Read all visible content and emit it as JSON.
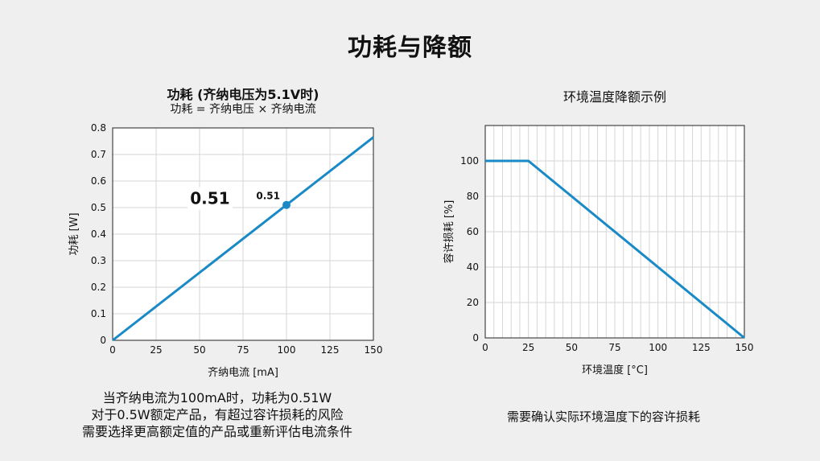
{
  "page": {
    "title": "功耗与降额"
  },
  "left_panel": {
    "caption_lines": [
      "当齐纳电流为100mA时，功耗为0.51W",
      "对于0.5W额定产品，有超过容许损耗的风险",
      "需要选择更高额定值的产品或重新评估电流条件"
    ]
  },
  "right_panel": {
    "caption": "需要确认实际环境温度下的容许损耗"
  },
  "chart_data": [
    {
      "type": "line",
      "title": "功耗 (齐纳电压为5.1V时)",
      "subtitle": "功耗 = 齐纳电压 × 齐纳电流",
      "xlabel": "齐纳电流 [mA]",
      "ylabel": "功耗 [W]",
      "xlim": [
        0,
        150
      ],
      "ylim": [
        0,
        0.8
      ],
      "xticks": [
        "0",
        "25",
        "50",
        "75",
        "100",
        "125",
        "150"
      ],
      "yticks": [
        "0",
        "0.1",
        "0.2",
        "0.3",
        "0.4",
        "0.5",
        "0.6",
        "0.7",
        "0.8"
      ],
      "grid": true,
      "color": "#1a8ac6",
      "series": [
        {
          "x": [
            0,
            150
          ],
          "y": [
            0,
            0.765
          ]
        }
      ],
      "marker": {
        "x": 100,
        "y": 0.51,
        "label": "0.51"
      },
      "annotation": {
        "text": "0.51",
        "x": 56,
        "y": 0.51
      }
    },
    {
      "type": "line",
      "title": "环境温度降额示例",
      "xlabel": "环境温度 [°C]",
      "ylabel": "容许损耗 [%]",
      "xlim": [
        0,
        150
      ],
      "ylim": [
        0,
        120
      ],
      "xticks": [
        "0",
        "25",
        "50",
        "75",
        "100",
        "125",
        "150"
      ],
      "yticks": [
        "0",
        "20",
        "40",
        "60",
        "80",
        "100"
      ],
      "grid": true,
      "color": "#1a8ac6",
      "series": [
        {
          "x": [
            0,
            25,
            150
          ],
          "y": [
            100,
            100,
            0
          ]
        }
      ]
    }
  ]
}
